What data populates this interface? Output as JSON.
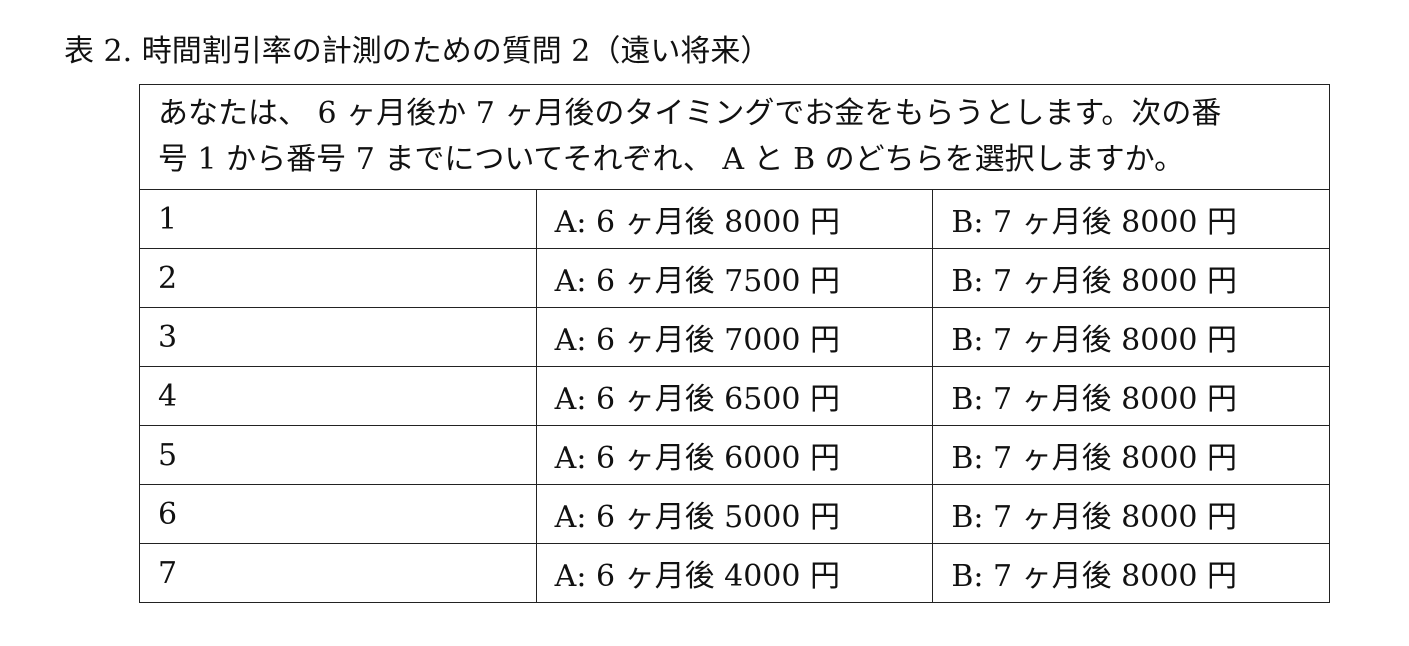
{
  "caption": "表 2.  時間割引率の計測のための質問 2（遠い将来）",
  "intro": {
    "line1": "あなたは、 6 ヶ月後か 7 ヶ月後のタイミングでお金をもらうとします。次の番",
    "line2": "号 1 から番号 7 までについてそれぞれ、 A と B のどちらを選択しますか。"
  },
  "rows": [
    {
      "num": "1",
      "option_a": "A: 6 ヶ月後  8000 円",
      "option_b": "B: 7 ヶ月後  8000 円"
    },
    {
      "num": "2",
      "option_a": "A: 6 ヶ月後 7500 円",
      "option_b": "B: 7 ヶ月後  8000 円"
    },
    {
      "num": "3",
      "option_a": "A: 6 ヶ月後 7000 円",
      "option_b": "B: 7 ヶ月後  8000 円"
    },
    {
      "num": "4",
      "option_a": "A: 6 ヶ月後 6500 円",
      "option_b": "B: 7 ヶ月後  8000 円"
    },
    {
      "num": "5",
      "option_a": "A: 6 ヶ月後 6000 円",
      "option_b": "B: 7 ヶ月後  8000 円"
    },
    {
      "num": "6",
      "option_a": "A: 6 ヶ月後 5000 円",
      "option_b": "B: 7 ヶ月後  8000 円"
    },
    {
      "num": "7",
      "option_a": "A: 6 ヶ月後 4000 円",
      "option_b": "B: 7 ヶ月後  8000 円"
    }
  ]
}
